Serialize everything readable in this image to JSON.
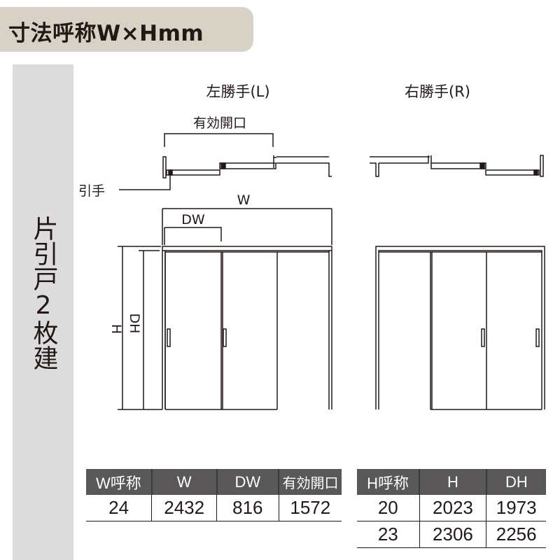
{
  "header": {
    "title": "寸法呼称W×Hmm"
  },
  "side_label": "片引戸2枚建",
  "diagram": {
    "left_title": "左勝手(L)",
    "right_title": "右勝手(R)",
    "effective_opening_label": "有効開口",
    "handle_label": "引手",
    "w_label": "W",
    "dw_label": "DW",
    "h_label": "H",
    "dh_label": "DH"
  },
  "width_table": {
    "headers": [
      "W呼称",
      "W",
      "DW",
      "有効開口"
    ],
    "rows": [
      [
        "24",
        "2432",
        "816",
        "1572"
      ]
    ]
  },
  "height_table": {
    "headers": [
      "H呼称",
      "H",
      "DH"
    ],
    "rows": [
      [
        "20",
        "2023",
        "1973"
      ],
      [
        "23",
        "2306",
        "2256"
      ]
    ]
  },
  "colors": {
    "header_pill": "#d8d2c6",
    "side_band": "#dcdcdc",
    "table_header": "#595757"
  }
}
